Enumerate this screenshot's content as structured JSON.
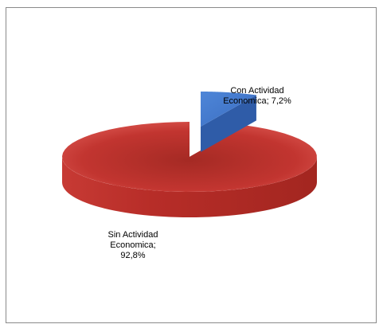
{
  "chart_data": {
    "type": "pie",
    "title": "",
    "style": "3d-exploded",
    "legend": "none",
    "slices": [
      {
        "name": "Con Actividad Economica",
        "value": 7.2,
        "display": "7,2%",
        "color": "#4472c4",
        "label_lines": [
          "Con Actividad",
          "Economica; 7,2%"
        ]
      },
      {
        "name": "Sin Actividad Economica",
        "value": 92.8,
        "display": "92,8%",
        "color": "#c0392b",
        "label_lines": [
          "Sin Actividad",
          "Economica;",
          "92,8%"
        ]
      }
    ]
  }
}
